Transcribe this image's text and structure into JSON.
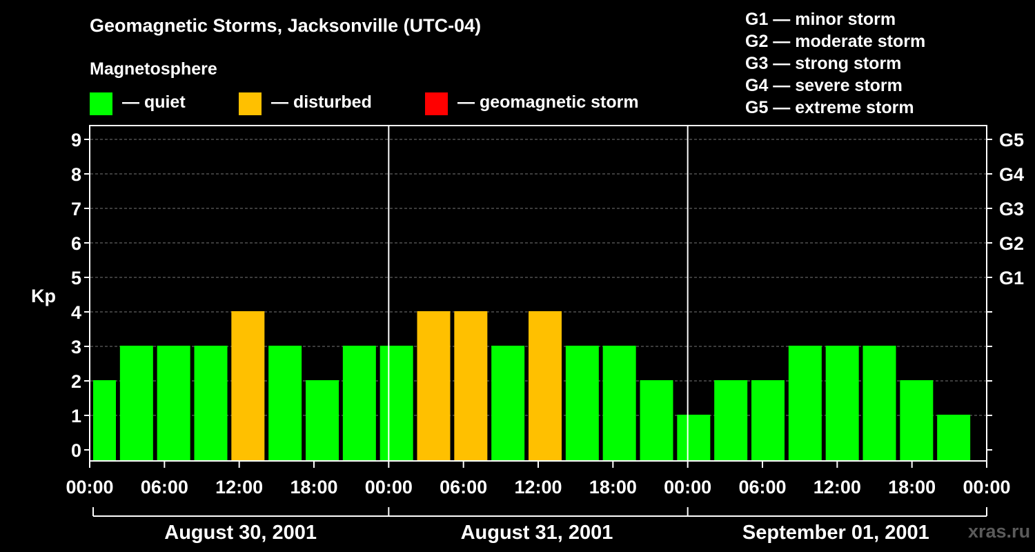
{
  "title": "Geomagnetic Storms, Jacksonville (UTC-04)",
  "magnetosphere_heading": "Magnetosphere",
  "legend": [
    {
      "label": "— quiet",
      "color": "#00ff00"
    },
    {
      "label": "— disturbed",
      "color": "#ffc000"
    },
    {
      "label": "— geomagnetic storm",
      "color": "#ff0000"
    }
  ],
  "storm_levels": [
    "G1 — minor storm",
    "G2 — moderate storm",
    "G3 — strong storm",
    "G4 — severe storm",
    "G5 — extreme storm"
  ],
  "watermark": "xras.ru",
  "chart_data": {
    "type": "bar",
    "title": "Geomagnetic Storms, Jacksonville (UTC-04)",
    "ylabel": "Kp",
    "ylim": [
      0,
      9
    ],
    "y_ticks": [
      "0",
      "1",
      "2",
      "3",
      "4",
      "5",
      "6",
      "7",
      "8",
      "9"
    ],
    "right_ticks": [
      {
        "kp": 5,
        "label": "G1"
      },
      {
        "kp": 6,
        "label": "G2"
      },
      {
        "kp": 7,
        "label": "G3"
      },
      {
        "kp": 8,
        "label": "G4"
      },
      {
        "kp": 9,
        "label": "G5"
      }
    ],
    "x_tick_labels": [
      "00:00",
      "06:00",
      "12:00",
      "18:00",
      "00:00",
      "06:00",
      "12:00",
      "18:00",
      "00:00",
      "06:00",
      "12:00",
      "18:00",
      "00:00"
    ],
    "days": [
      "August 30, 2001",
      "August 31, 2001",
      "September 01, 2001"
    ],
    "values": [
      2,
      3,
      3,
      3,
      4,
      3,
      2,
      3,
      3,
      4,
      4,
      3,
      4,
      3,
      3,
      2,
      1,
      2,
      2,
      3,
      3,
      3,
      2,
      1
    ],
    "thresholds": {
      "disturbed": 4,
      "storm": 5
    },
    "colors": {
      "quiet": "#00ff00",
      "disturbed": "#ffc000",
      "storm": "#ff0000"
    },
    "grid": "dashed horizontal at integer Kp from 1 to 9"
  }
}
